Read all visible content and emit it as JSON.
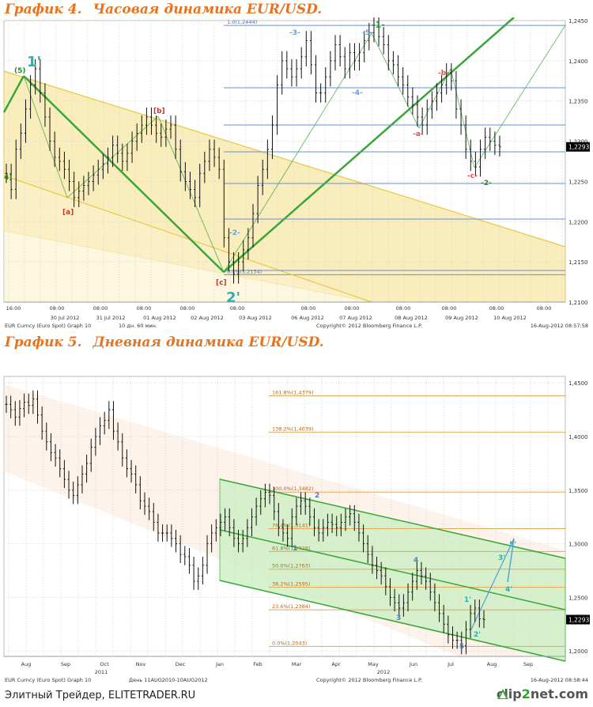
{
  "chart1_title": {
    "num": "График 4.",
    "text": "Часовая динамика EUR/USD."
  },
  "chart2_title": {
    "num": "График 5.",
    "text": "Дневная динамика EUR/USD."
  },
  "footer": {
    "site": "Элитный Трейдер, ELITETRADER.RU",
    "logo_a": "clip",
    "logo_b": "2",
    "logo_c": "net.com"
  },
  "chart_data": [
    {
      "type": "line",
      "series": [
        {
          "values": [
            1.226,
            1.224,
            1.229,
            1.231,
            1.234,
            1.237,
            1.239,
            1.236,
            1.233,
            1.23,
            1.228,
            1.2275,
            1.2265,
            1.225,
            1.223,
            1.2238,
            1.2245,
            1.225,
            1.2258,
            1.2265,
            1.2272,
            1.228,
            1.2295,
            1.2285,
            1.2275,
            1.2285,
            1.23,
            1.231,
            1.232,
            1.233,
            1.232,
            1.231,
            1.2305,
            1.2315,
            1.232,
            1.229,
            1.2262,
            1.225,
            1.224,
            1.223,
            1.226,
            1.2275,
            1.229,
            1.228,
            1.2265,
            1.218,
            1.215,
            1.2135,
            1.215,
            1.2165,
            1.218,
            1.221,
            1.2245,
            1.2265,
            1.229,
            1.232,
            1.237,
            1.24,
            1.239,
            1.238,
            1.239,
            1.2405,
            1.2425,
            1.2395,
            1.236,
            1.236,
            1.238,
            1.24,
            1.242,
            1.2405,
            1.239,
            1.241,
            1.24,
            1.241,
            1.2425,
            1.2435,
            1.2444,
            1.243,
            1.242,
            1.24,
            1.2395,
            1.238,
            1.237,
            1.2355,
            1.2345,
            1.233,
            1.232,
            1.234,
            1.235,
            1.236,
            1.237,
            1.2385,
            1.2375,
            1.234,
            1.232,
            1.229,
            1.2275,
            1.2268,
            1.229,
            1.2305,
            1.23,
            1.2295,
            1.2293
          ]
        }
      ],
      "ylim": [
        1.21,
        1.245
      ],
      "yticks": [
        "1,2450",
        "1,2400",
        "1,2350",
        "1,2300",
        "1,2250",
        "1,2200",
        "1,2150",
        "1,2100"
      ],
      "price_label": "1,2293",
      "time_labels": [
        "16:00",
        "08:00",
        "08:00",
        "08:00",
        "08:00",
        "08:00",
        "08:00",
        "08:00",
        "08:00",
        "08:00",
        "08:00",
        "08:00"
      ],
      "date_labels": [
        "30 Jul 2012",
        "31 Jul 2012",
        "01 Aug 2012",
        "02 Aug 2012",
        "03 Aug 2012",
        "06 Aug 2012",
        "07 Aug 2012",
        "08 Aug 2012",
        "09 Aug 2012",
        "10 Aug 2012"
      ],
      "fib_levels": [
        {
          "label": "1.0(1,2444)",
          "value": 1.2444
        },
        {
          "label": "0.0%(1,2134)",
          "value": 1.2134
        }
      ],
      "wave_labels": [
        {
          "text": "1'",
          "color": "#2ab0b0"
        },
        {
          "text": "(5)",
          "color": "#2a8a2a"
        },
        {
          "text": "4)",
          "color": "#2a8a2a"
        },
        {
          "text": "[a]",
          "color": "#c0392b"
        },
        {
          "text": "[b]",
          "color": "#c0392b"
        },
        {
          "text": "[c]",
          "color": "#c0392b"
        },
        {
          "text": "2'",
          "color": "#2ab0b0"
        },
        {
          "text": "-1-",
          "color": "#2a8a2a"
        },
        {
          "text": "-a-",
          "color": "#e05050"
        },
        {
          "text": "-b-",
          "color": "#e05050"
        },
        {
          "text": "-c-",
          "color": "#e05050"
        },
        {
          "text": "-2-",
          "color": "#2a8a2a"
        },
        {
          "text": "-5-",
          "color": "#6aa0d8"
        },
        {
          "text": "-3-",
          "color": "#6aa0d8"
        },
        {
          "text": "-4-",
          "color": "#6aa0d8"
        },
        {
          "text": "-2-",
          "color": "#6aa0d8"
        }
      ],
      "footer_left": "EUR Curncy (Euro Spot) Graph 10",
      "footer_mid": "10 дн. 60 мин.",
      "footer_copy": "Copyright© 2012 Bloomberg Finance L.P.",
      "footer_date": "16-Aug-2012 08:57:58"
    },
    {
      "type": "line",
      "series": [
        {
          "values": [
            1.43,
            1.425,
            1.418,
            1.426,
            1.432,
            1.429,
            1.435,
            1.42,
            1.405,
            1.395,
            1.385,
            1.38,
            1.37,
            1.36,
            1.35,
            1.345,
            1.355,
            1.365,
            1.375,
            1.39,
            1.4,
            1.41,
            1.415,
            1.425,
            1.405,
            1.395,
            1.38,
            1.37,
            1.365,
            1.355,
            1.34,
            1.335,
            1.33,
            1.32,
            1.31,
            1.31,
            1.31,
            1.305,
            1.3,
            1.29,
            1.288,
            1.28,
            1.265,
            1.27,
            1.28,
            1.3,
            1.31,
            1.315,
            1.32,
            1.325,
            1.315,
            1.305,
            1.3,
            1.305,
            1.315,
            1.325,
            1.335,
            1.342,
            1.348,
            1.345,
            1.33,
            1.315,
            1.31,
            1.305,
            1.325,
            1.335,
            1.34,
            1.335,
            1.325,
            1.315,
            1.31,
            1.315,
            1.32,
            1.318,
            1.315,
            1.32,
            1.325,
            1.328,
            1.32,
            1.31,
            1.3,
            1.29,
            1.28,
            1.275,
            1.27,
            1.26,
            1.25,
            1.245,
            1.24,
            1.245,
            1.255,
            1.265,
            1.275,
            1.27,
            1.265,
            1.255,
            1.245,
            1.235,
            1.225,
            1.215,
            1.21,
            1.21,
            1.205,
            1.22,
            1.235,
            1.24,
            1.23,
            1.2293
          ]
        }
      ],
      "ylim": [
        1.195,
        1.456
      ],
      "yticks": [
        "1,4500",
        "1,4000",
        "1,3500",
        "1,3000",
        "1,2500",
        "1,2000"
      ],
      "price_label": "1,2293",
      "month_labels": [
        "Aug",
        "Sep",
        "Oct",
        "Nov",
        "Dec",
        "Jan",
        "Feb",
        "Mar",
        "Apr",
        "May",
        "Jun",
        "Jul",
        "Aug",
        "Sep"
      ],
      "year_labels": [
        "2011",
        "2012"
      ],
      "fib_levels": [
        {
          "label": "161.8%(1,4379)",
          "value": 1.4379
        },
        {
          "label": "138.2%(1,4039)",
          "value": 1.4039
        },
        {
          "label": "100.0%(1,3482)",
          "value": 1.3482
        },
        {
          "label": "76.4%(1,3141)",
          "value": 1.3141
        },
        {
          "label": "61.8%(1,2928)",
          "value": 1.2928
        },
        {
          "label": "50.0%(1,2763)",
          "value": 1.2763
        },
        {
          "label": "38.2%(1,2595)",
          "value": 1.2595
        },
        {
          "label": "23.6%(1,2384)",
          "value": 1.2384
        },
        {
          "label": "0.0%(1,2043)",
          "value": 1.2043
        }
      ],
      "wave_labels": [
        {
          "text": "1",
          "color": "#4a7fc0"
        },
        {
          "text": "2",
          "color": "#4a7fc0"
        },
        {
          "text": "3",
          "color": "#4a7fc0"
        },
        {
          "text": "4",
          "color": "#4a7fc0"
        },
        {
          "text": "5",
          "color": "#4a7fc0"
        },
        {
          "text": "1'",
          "color": "#2ab0b0"
        },
        {
          "text": "2'",
          "color": "#2ab0b0"
        },
        {
          "text": "3'",
          "color": "#2ab0b0"
        },
        {
          "text": "4'",
          "color": "#2ab0b0"
        },
        {
          "text": "5'",
          "color": "#2ab0b0"
        }
      ],
      "footer_left": "EUR Curncy (Euro Spot) Graph 10",
      "footer_mid": "День 11AUG2010-10AUG2012",
      "footer_copy": "Copyright© 2012 Bloomberg Finance L.P.",
      "footer_date": "16-Aug-2012 08:58:44"
    }
  ]
}
